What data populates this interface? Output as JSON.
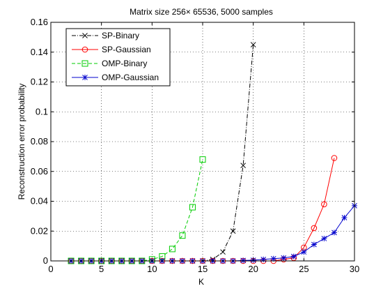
{
  "chart_data": {
    "type": "line",
    "title": "Matrix size 256× 65536, 5000 samples",
    "xlabel": "K",
    "ylabel": "Reconstruction error probability",
    "xlim": [
      0,
      30
    ],
    "ylim": [
      0,
      0.16
    ],
    "xticks": [
      0,
      5,
      10,
      15,
      20,
      25,
      30
    ],
    "yticks": [
      0,
      0.02,
      0.04,
      0.06,
      0.08,
      0.1,
      0.12,
      0.14,
      0.16
    ],
    "xtick_labels": [
      "0",
      "5",
      "10",
      "15",
      "20",
      "25",
      "30"
    ],
    "ytick_labels": [
      "0",
      "0.02",
      "0.04",
      "0.06",
      "0.08",
      "0.1",
      "0.12",
      "0.14",
      "0.16"
    ],
    "grid": true,
    "grid_style": "dotted",
    "legend_position": "top-left",
    "series": [
      {
        "name": "SP-Binary",
        "color": "#000000",
        "line": "dashdot",
        "marker": "x-mark",
        "x": [
          2,
          3,
          4,
          5,
          6,
          7,
          8,
          9,
          10,
          11,
          12,
          13,
          14,
          15,
          16,
          17,
          18,
          19,
          20
        ],
        "y": [
          0,
          0,
          0,
          0,
          0,
          0,
          0,
          0,
          0,
          0,
          0,
          0,
          0,
          0,
          0.001,
          0.006,
          0.02,
          0.064,
          0.145
        ]
      },
      {
        "name": "SP-Gaussian",
        "color": "#ff0000",
        "line": "solid",
        "marker": "circle",
        "x": [
          2,
          3,
          4,
          5,
          6,
          7,
          8,
          9,
          10,
          11,
          12,
          13,
          14,
          15,
          16,
          17,
          18,
          19,
          20,
          21,
          22,
          23,
          24,
          25,
          26,
          27,
          28
        ],
        "y": [
          0,
          0,
          0,
          0,
          0,
          0,
          0,
          0,
          0,
          0,
          0,
          0,
          0,
          0,
          0,
          0,
          0,
          0,
          0,
          0,
          0,
          0.001,
          0.002,
          0.009,
          0.022,
          0.038,
          0.069
        ]
      },
      {
        "name": "OMP-Binary",
        "color": "#00cc00",
        "line": "dashed",
        "marker": "square",
        "x": [
          2,
          3,
          4,
          5,
          6,
          7,
          8,
          9,
          10,
          11,
          12,
          13,
          14,
          15
        ],
        "y": [
          0,
          0,
          0,
          0,
          0,
          0,
          0,
          0,
          0.001,
          0.003,
          0.008,
          0.017,
          0.036,
          0.068
        ]
      },
      {
        "name": "OMP-Gaussian",
        "color": "#0000cc",
        "line": "solid",
        "marker": "asterisk",
        "x": [
          2,
          3,
          4,
          5,
          6,
          7,
          8,
          9,
          10,
          11,
          12,
          13,
          14,
          15,
          16,
          17,
          18,
          19,
          20,
          21,
          22,
          23,
          24,
          25,
          26,
          27,
          28,
          29,
          30
        ],
        "y": [
          0,
          0,
          0,
          0,
          0,
          0,
          0,
          0,
          0,
          0,
          0,
          0,
          0,
          0,
          0,
          0,
          0,
          0.0003,
          0.0005,
          0.001,
          0.0015,
          0.002,
          0.003,
          0.006,
          0.011,
          0.015,
          0.019,
          0.029,
          0.037
        ]
      }
    ]
  }
}
